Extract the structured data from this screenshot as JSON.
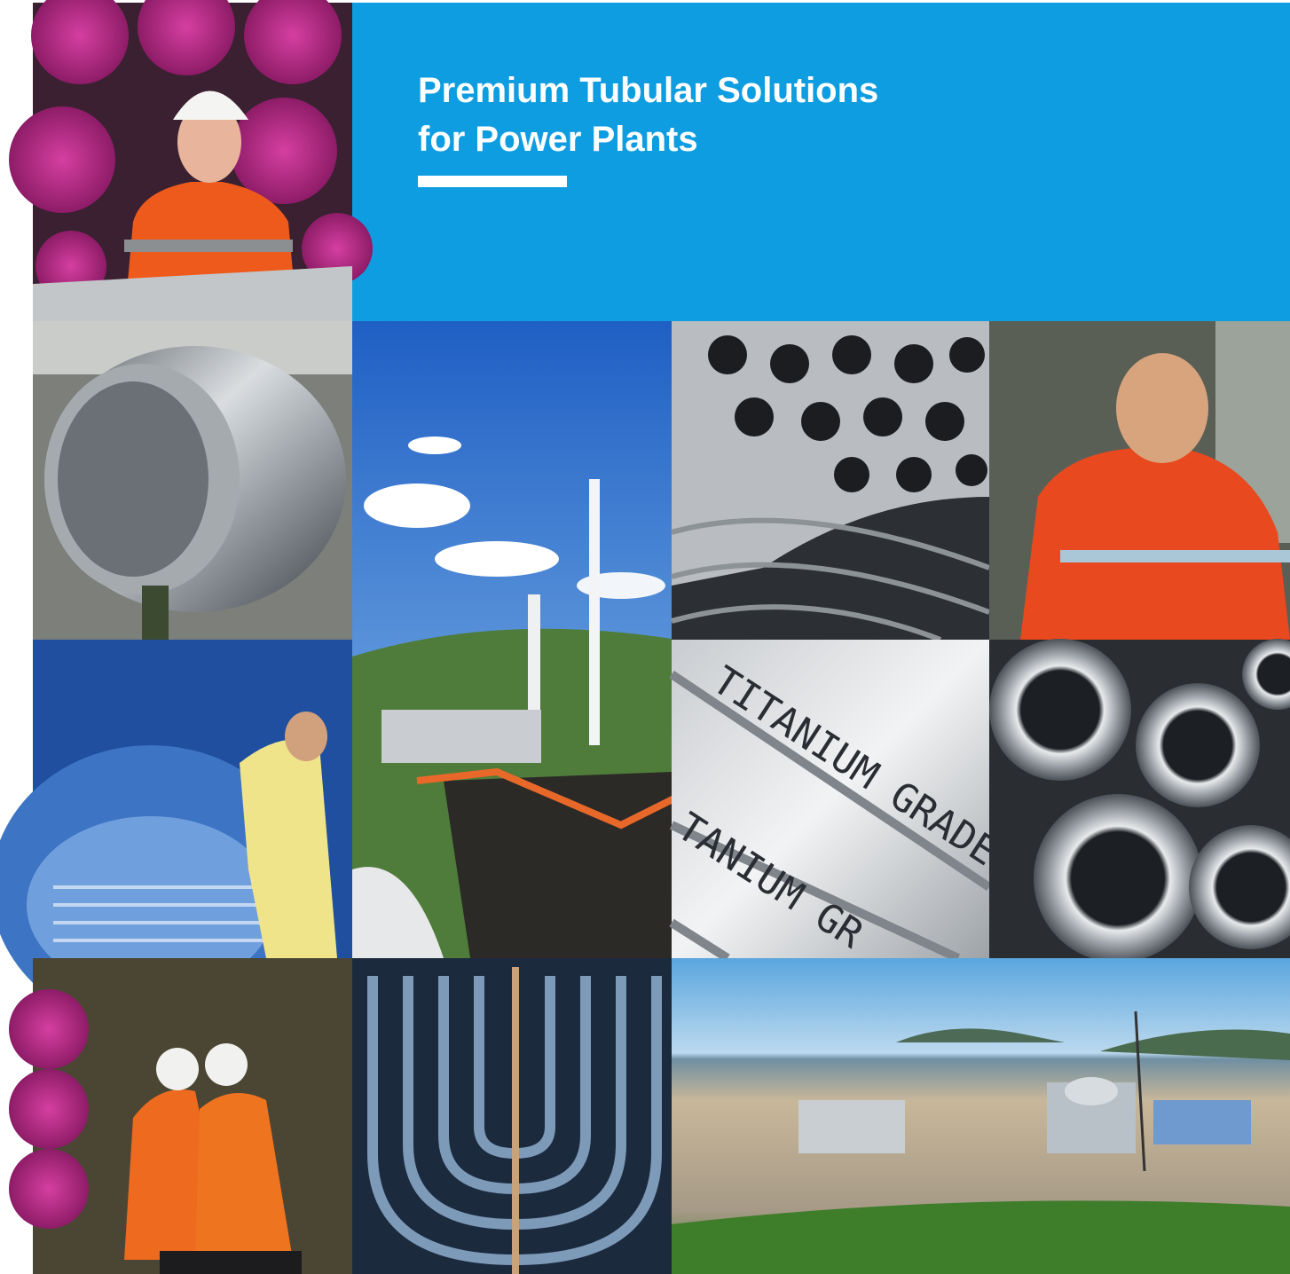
{
  "header": {
    "title_lines": [
      "Premium Tubular Solutions",
      "for Power Plants"
    ]
  },
  "photos": {
    "tube_print": [
      "TITANIUM GRADE",
      "TANIUM GR"
    ]
  }
}
